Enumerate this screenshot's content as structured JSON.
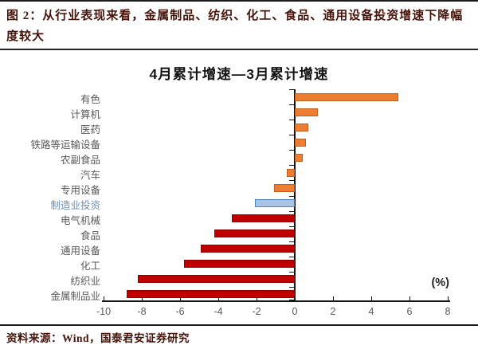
{
  "header": {
    "title": "图 2：从行业表现来看，金属制品、纺织、化工、食品、通用设备投资增速下降幅度较大"
  },
  "chart": {
    "title": "4月累计增速—3月累计增速",
    "unit_label": "(%)"
  },
  "chart_data": {
    "type": "bar",
    "orientation": "horizontal",
    "title": "4月累计增速—3月累计增速",
    "x_unit": "%",
    "xlim": [
      -10,
      8
    ],
    "x_ticks": [
      -10,
      -8,
      -6,
      -4,
      -2,
      0,
      2,
      4,
      6,
      8
    ],
    "grid": false,
    "legend": false,
    "bars": [
      {
        "label": "有色",
        "value": 5.4,
        "color": "orange"
      },
      {
        "label": "计算机",
        "value": 1.2,
        "color": "orange"
      },
      {
        "label": "医药",
        "value": 0.7,
        "color": "orange"
      },
      {
        "label": "铁路等运输设备",
        "value": 0.6,
        "color": "orange"
      },
      {
        "label": "农副食品",
        "value": 0.4,
        "color": "orange"
      },
      {
        "label": "汽车",
        "value": -0.4,
        "color": "orange"
      },
      {
        "label": "专用设备",
        "value": -1.1,
        "color": "orange"
      },
      {
        "label": "制造业投资",
        "value": -2.1,
        "color": "blue",
        "highlight": true
      },
      {
        "label": "电气机械",
        "value": -3.3,
        "color": "red"
      },
      {
        "label": "食品",
        "value": -4.2,
        "color": "red"
      },
      {
        "label": "通用设备",
        "value": -4.9,
        "color": "red"
      },
      {
        "label": "化工",
        "value": -5.8,
        "color": "red"
      },
      {
        "label": "纺织业",
        "value": -8.2,
        "color": "red"
      },
      {
        "label": "金属制品业",
        "value": -8.8,
        "color": "red"
      }
    ],
    "palette": {
      "orange": {
        "fill": "#ED7D31",
        "border": "#BE6020"
      },
      "red": {
        "fill": "#C00000",
        "border": "#8F0000"
      },
      "blue": {
        "fill": "#A9C4E3",
        "border": "#4F81BD"
      }
    },
    "label_color": "#595959",
    "highlight_label_color": "#6D8DB0"
  },
  "footer": {
    "source": "资料来源：Wind，国泰君安证券研究"
  },
  "colors": {
    "heading_text": "#45150C",
    "axis_text": "#595959",
    "axis_line": "#141414"
  }
}
